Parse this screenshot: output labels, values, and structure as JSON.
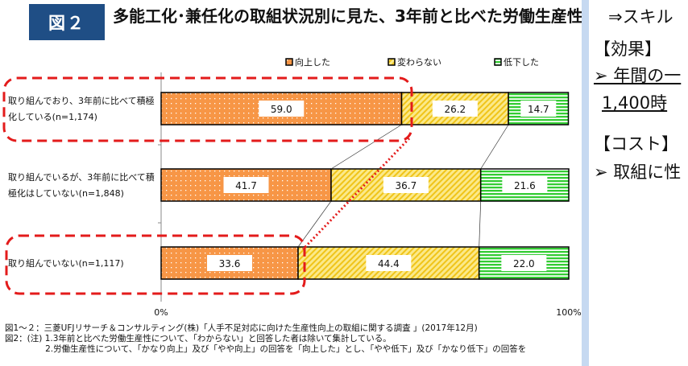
{
  "badge": "図２",
  "title": "多能工化･兼任化の取組状況別に見た、3年前と比べた労働生産性",
  "chart_data": {
    "type": "bar",
    "stacked": true,
    "orientation": "horizontal",
    "categories": [
      "取り組んでおり、3年前に比べて積極化している(n=1,174)",
      "取り組んでいるが、3年前に比べて積極化はしていない(n=1,848)",
      "取り組んでいない(n=1,117)"
    ],
    "series": [
      {
        "name": "向上した",
        "values": [
          59.0,
          41.7,
          33.6
        ],
        "color": "#f79646",
        "pattern": "dots"
      },
      {
        "name": "変わらない",
        "values": [
          26.2,
          36.7,
          44.4
        ],
        "color": "#f5d33a",
        "pattern": "diagonal"
      },
      {
        "name": "低下した",
        "values": [
          14.7,
          21.6,
          22.0
        ],
        "color": "#33cc33",
        "pattern": "horizontal"
      }
    ],
    "xlim": [
      0,
      100
    ],
    "xticks": [
      "0%",
      "100%"
    ],
    "legend": "top"
  },
  "categories_wrapped": [
    [
      "取り組んでおり、3年前に比べて積極",
      "化している(n=1,174)"
    ],
    [
      "取り組んでいるが、3年前に比べて積",
      "極化はしていない(n=1,848)"
    ],
    [
      "取り組んでいない(n=1,117)"
    ]
  ],
  "notes": [
    "図1～２：三菱UFJリサーチ＆コンサルティング(株)「人手不足対応に向けた生産性向上の取組に関する調査 」(2017年12月)",
    "図2：(注) 1.3年前と比べた労働生産性について、「わからない」と回答した者は除いて集計している。",
    "               2.労働生産性について、「かなり向上」及び「やや向上」の回答を「向上した」とし、「やや低下」及び「かなり低下」の回答を"
  ],
  "panel": {
    "line1": "⇒スキル",
    "line2": "【効果】",
    "line3": "➢ 年間の一",
    "line4": "1,400時",
    "line5": "【コスト】",
    "line6": "➢ 取組に性"
  },
  "accent_colors": {
    "badge": "#1f4e85",
    "highlight": "#e31b1b"
  }
}
